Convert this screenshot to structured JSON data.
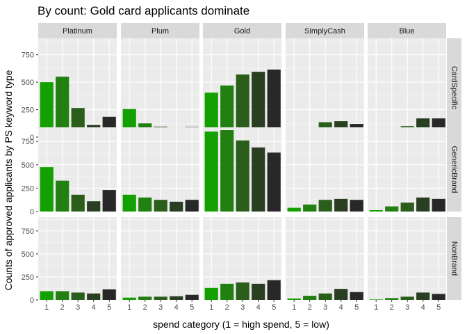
{
  "chart_data": {
    "type": "bar",
    "title": "By count: Gold card applicants dominate",
    "xlabel": "spend category (1 = high spend, 5 = low)",
    "ylabel": "Counts of approved applicants by PS keyword type",
    "categories": [
      "1",
      "2",
      "3",
      "4",
      "5"
    ],
    "ylim": [
      0,
      900
    ],
    "yticks": [
      0,
      250,
      500,
      750
    ],
    "facet_columns": [
      "Platinum",
      "Plum",
      "Gold",
      "SimplyCash",
      "Blue"
    ],
    "facet_rows": [
      "CardSpecific",
      "GenericBrand",
      "NonBrand"
    ],
    "bar_colors": [
      "#14a000",
      "#228012",
      "#2a5e1a",
      "#2a3f21",
      "#282828"
    ],
    "panel_background": "#ebebeb",
    "strip_background": "#d9d9d9",
    "grid": true,
    "legend": "none",
    "panels": [
      {
        "row": "CardSpecific",
        "col": "Platinum",
        "values": [
          500,
          550,
          265,
          110,
          185
        ]
      },
      {
        "row": "CardSpecific",
        "col": "Plum",
        "values": [
          255,
          125,
          95,
          85,
          92
        ]
      },
      {
        "row": "CardSpecific",
        "col": "Gold",
        "values": [
          405,
          470,
          570,
          595,
          615
        ]
      },
      {
        "row": "CardSpecific",
        "col": "SimplyCash",
        "values": [
          35,
          75,
          135,
          145,
          120
        ]
      },
      {
        "row": "CardSpecific",
        "col": "Blue",
        "values": [
          25,
          55,
          100,
          170,
          170
        ]
      },
      {
        "row": "GenericBrand",
        "col": "Platinum",
        "values": [
          475,
          330,
          180,
          110,
          230
        ]
      },
      {
        "row": "GenericBrand",
        "col": "Plum",
        "values": [
          180,
          150,
          125,
          105,
          125
        ]
      },
      {
        "row": "GenericBrand",
        "col": "Gold",
        "values": [
          855,
          870,
          760,
          685,
          630
        ]
      },
      {
        "row": "GenericBrand",
        "col": "SimplyCash",
        "values": [
          40,
          75,
          125,
          135,
          125
        ]
      },
      {
        "row": "GenericBrand",
        "col": "Blue",
        "values": [
          15,
          55,
          95,
          150,
          135
        ]
      },
      {
        "row": "NonBrand",
        "col": "Platinum",
        "values": [
          95,
          95,
          80,
          70,
          115
        ]
      },
      {
        "row": "NonBrand",
        "col": "Plum",
        "values": [
          25,
          35,
          35,
          40,
          55
        ]
      },
      {
        "row": "NonBrand",
        "col": "Gold",
        "values": [
          130,
          175,
          190,
          175,
          215
        ]
      },
      {
        "row": "NonBrand",
        "col": "SimplyCash",
        "values": [
          15,
          45,
          70,
          120,
          85
        ]
      },
      {
        "row": "NonBrand",
        "col": "Blue",
        "values": [
          5,
          20,
          35,
          80,
          65
        ]
      }
    ]
  }
}
